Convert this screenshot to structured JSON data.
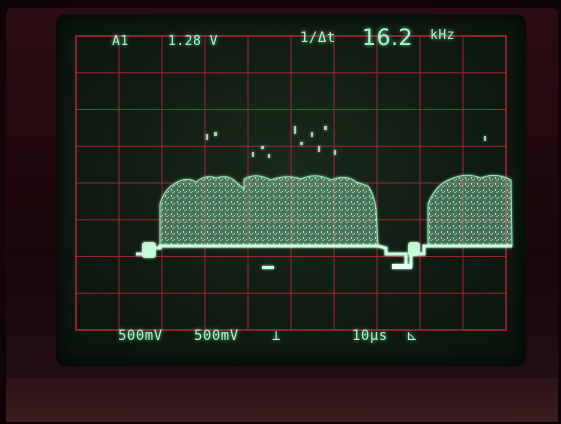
{
  "scope": {
    "channel": "A1",
    "level": "1.28 V",
    "freq_symbol": "1/Δt",
    "frequency": "16.2",
    "freq_unit": "kHz",
    "ch1_scale": "500mV",
    "ch2_scale": "500mV",
    "ch2_coupling_symbol": "⊥",
    "timebase": "10µs",
    "trigger_symbol": "⊾"
  },
  "colors": {
    "trace": "#9ef5c0",
    "grid": "#b8273a"
  }
}
